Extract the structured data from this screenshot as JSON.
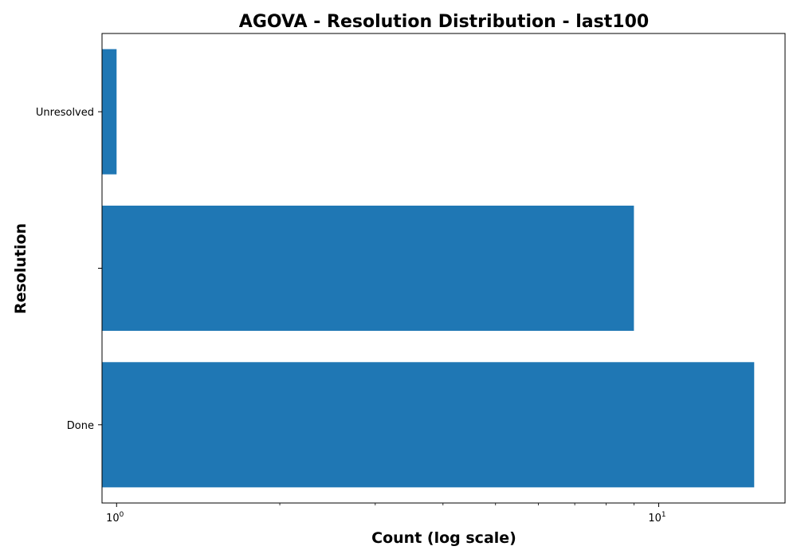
{
  "chart_data": {
    "type": "bar",
    "orientation": "horizontal",
    "title": "AGOVA - Resolution Distribution - last100",
    "xlabel": "Count (log scale)",
    "ylabel": "Resolution",
    "x_scale": "log",
    "xlim": [
      0.94,
      17.1
    ],
    "x_ticks": [
      {
        "base": "10",
        "exp": "0",
        "value": 1
      },
      {
        "base": "10",
        "exp": "1",
        "value": 10
      }
    ],
    "categories": [
      "Done",
      "",
      "Unresolved"
    ],
    "values": [
      15,
      9,
      1
    ],
    "bar_color": "#1f77b4",
    "grid": false,
    "legend": false
  }
}
